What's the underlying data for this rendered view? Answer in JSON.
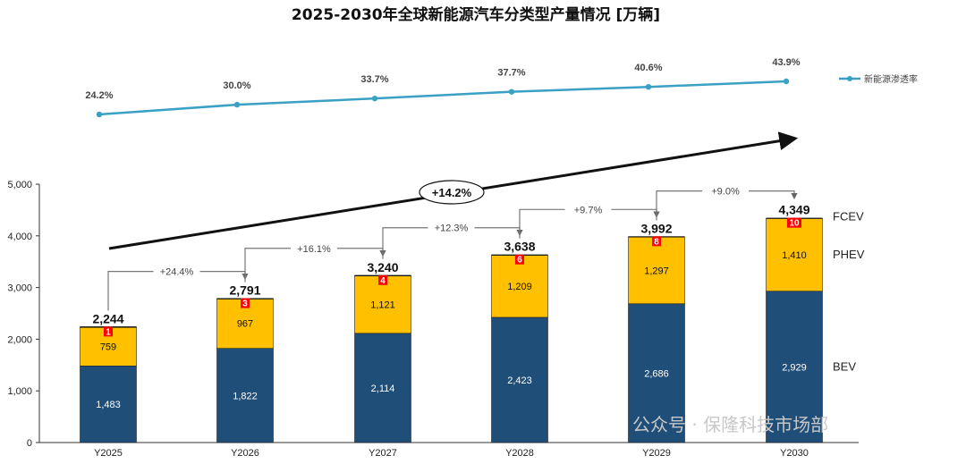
{
  "chart_data": {
    "type": "bar",
    "stacked": true,
    "title": "2025-2030年全球新能源汽车分类型产量情况 [万辆]",
    "categories": [
      "Y2025",
      "Y2026",
      "Y2027",
      "Y2028",
      "Y2029",
      "Y2030"
    ],
    "ylim": [
      0,
      5000
    ],
    "yticks": [
      0,
      1000,
      2000,
      3000,
      4000,
      5000
    ],
    "ytick_labels": [
      "0",
      "1,000",
      "2,000",
      "3,000",
      "4,000",
      "5,000"
    ],
    "series": [
      {
        "name": "BEV",
        "color": "#1f4e79",
        "values": [
          1483,
          1822,
          2114,
          2423,
          2686,
          2929
        ],
        "labels": [
          "1,483",
          "1,822",
          "2,114",
          "2,423",
          "2,686",
          "2,929"
        ]
      },
      {
        "name": "PHEV",
        "color": "#ffc000",
        "values": [
          759,
          967,
          1121,
          1209,
          1297,
          1410
        ],
        "labels": [
          "759",
          "967",
          "1,121",
          "1,209",
          "1,297",
          "1,410"
        ]
      },
      {
        "name": "FCEV",
        "color": "#ff0000",
        "values": [
          1,
          3,
          4,
          6,
          8,
          10
        ],
        "labels": [
          "1",
          "3",
          "4",
          "6",
          "8",
          "10"
        ]
      }
    ],
    "totals": [
      "2,244",
      "2,791",
      "3,240",
      "3,638",
      "3,992",
      "4,349"
    ],
    "growth_labels": [
      "+24.4%",
      "+16.1%",
      "+12.3%",
      "+9.7%",
      "+9.0%"
    ],
    "cagr_label": "+14.2%",
    "penetration": {
      "name": "新能源渗透率",
      "color": "#3aa0c4",
      "values": [
        24.2,
        30.0,
        33.7,
        37.7,
        40.6,
        43.9
      ],
      "labels": [
        "24.2%",
        "30.0%",
        "33.7%",
        "37.7%",
        "40.6%",
        "43.9%"
      ]
    }
  },
  "watermark": "公众号 · 保隆科技市场部"
}
